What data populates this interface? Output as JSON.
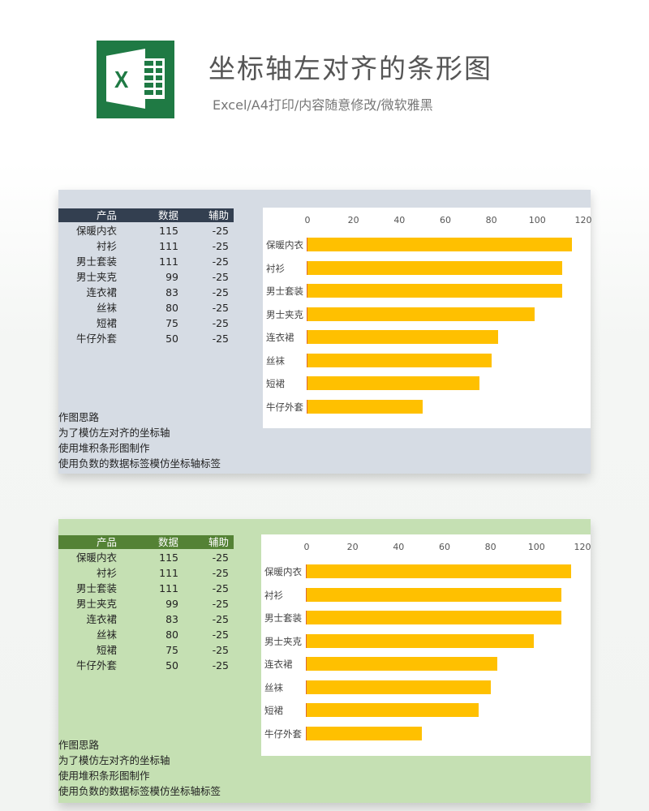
{
  "header": {
    "title": "坐标轴左对齐的条形图",
    "subtitle": "Excel/A4打印/内容随意修改/微软雅黑",
    "logo_icon": "excel-icon",
    "logo_letter": "X",
    "logo_color": "#1f7a44"
  },
  "panels": [
    {
      "theme": "blue-gray",
      "background": "#d6dce4",
      "header_color": "#333f50",
      "table": {
        "columns": [
          "产品",
          "数据",
          "辅助"
        ],
        "rows": [
          [
            "保暖内衣",
            "115",
            "-25"
          ],
          [
            "衬衫",
            "111",
            "-25"
          ],
          [
            "男士套装",
            "111",
            "-25"
          ],
          [
            "男士夹克",
            "99",
            "-25"
          ],
          [
            "连衣裙",
            "83",
            "-25"
          ],
          [
            "丝袜",
            "80",
            "-25"
          ],
          [
            "短裙",
            "75",
            "-25"
          ],
          [
            "牛仔外套",
            "50",
            "-25"
          ]
        ]
      },
      "notes": [
        "作图思路",
        "为了模仿左对齐的坐标轴",
        "使用堆积条形图制作",
        "使用负数的数据标签模仿坐标轴标签"
      ]
    },
    {
      "theme": "green",
      "background": "#c5e0b3",
      "header_color": "#548235",
      "table": {
        "columns": [
          "产品",
          "数据",
          "辅助"
        ],
        "rows": [
          [
            "保暖内衣",
            "115",
            "-25"
          ],
          [
            "衬衫",
            "111",
            "-25"
          ],
          [
            "男士套装",
            "111",
            "-25"
          ],
          [
            "男士夹克",
            "99",
            "-25"
          ],
          [
            "连衣裙",
            "83",
            "-25"
          ],
          [
            "丝袜",
            "80",
            "-25"
          ],
          [
            "短裙",
            "75",
            "-25"
          ],
          [
            "牛仔外套",
            "50",
            "-25"
          ]
        ]
      },
      "notes": [
        "作图思路",
        "为了模仿左对齐的坐标轴",
        "使用堆积条形图制作",
        "使用负数的数据标签模仿坐标轴标签"
      ]
    }
  ],
  "chart_data": [
    {
      "type": "bar",
      "orientation": "horizontal",
      "title": "",
      "categories": [
        "保暖内衣",
        "衬衫",
        "男士套装",
        "男士夹克",
        "连衣裙",
        "丝袜",
        "短裙",
        "牛仔外套"
      ],
      "values": [
        115,
        111,
        111,
        99,
        83,
        80,
        75,
        50
      ],
      "xticks": [
        "0",
        "20",
        "40",
        "60",
        "80",
        "100",
        "120"
      ],
      "xlim": [
        0,
        120
      ],
      "axis_position": "top",
      "bar_color": "#ffc000",
      "grid": false,
      "legend": false
    },
    {
      "type": "bar",
      "orientation": "horizontal",
      "title": "",
      "categories": [
        "保暖内衣",
        "衬衫",
        "男士套装",
        "男士夹克",
        "连衣裙",
        "丝袜",
        "短裙",
        "牛仔外套"
      ],
      "values": [
        115,
        111,
        111,
        99,
        83,
        80,
        75,
        50
      ],
      "xticks": [
        "0",
        "20",
        "40",
        "60",
        "80",
        "100",
        "120"
      ],
      "xlim": [
        0,
        120
      ],
      "axis_position": "top",
      "bar_color": "#ffc000",
      "grid": false,
      "legend": false
    }
  ]
}
